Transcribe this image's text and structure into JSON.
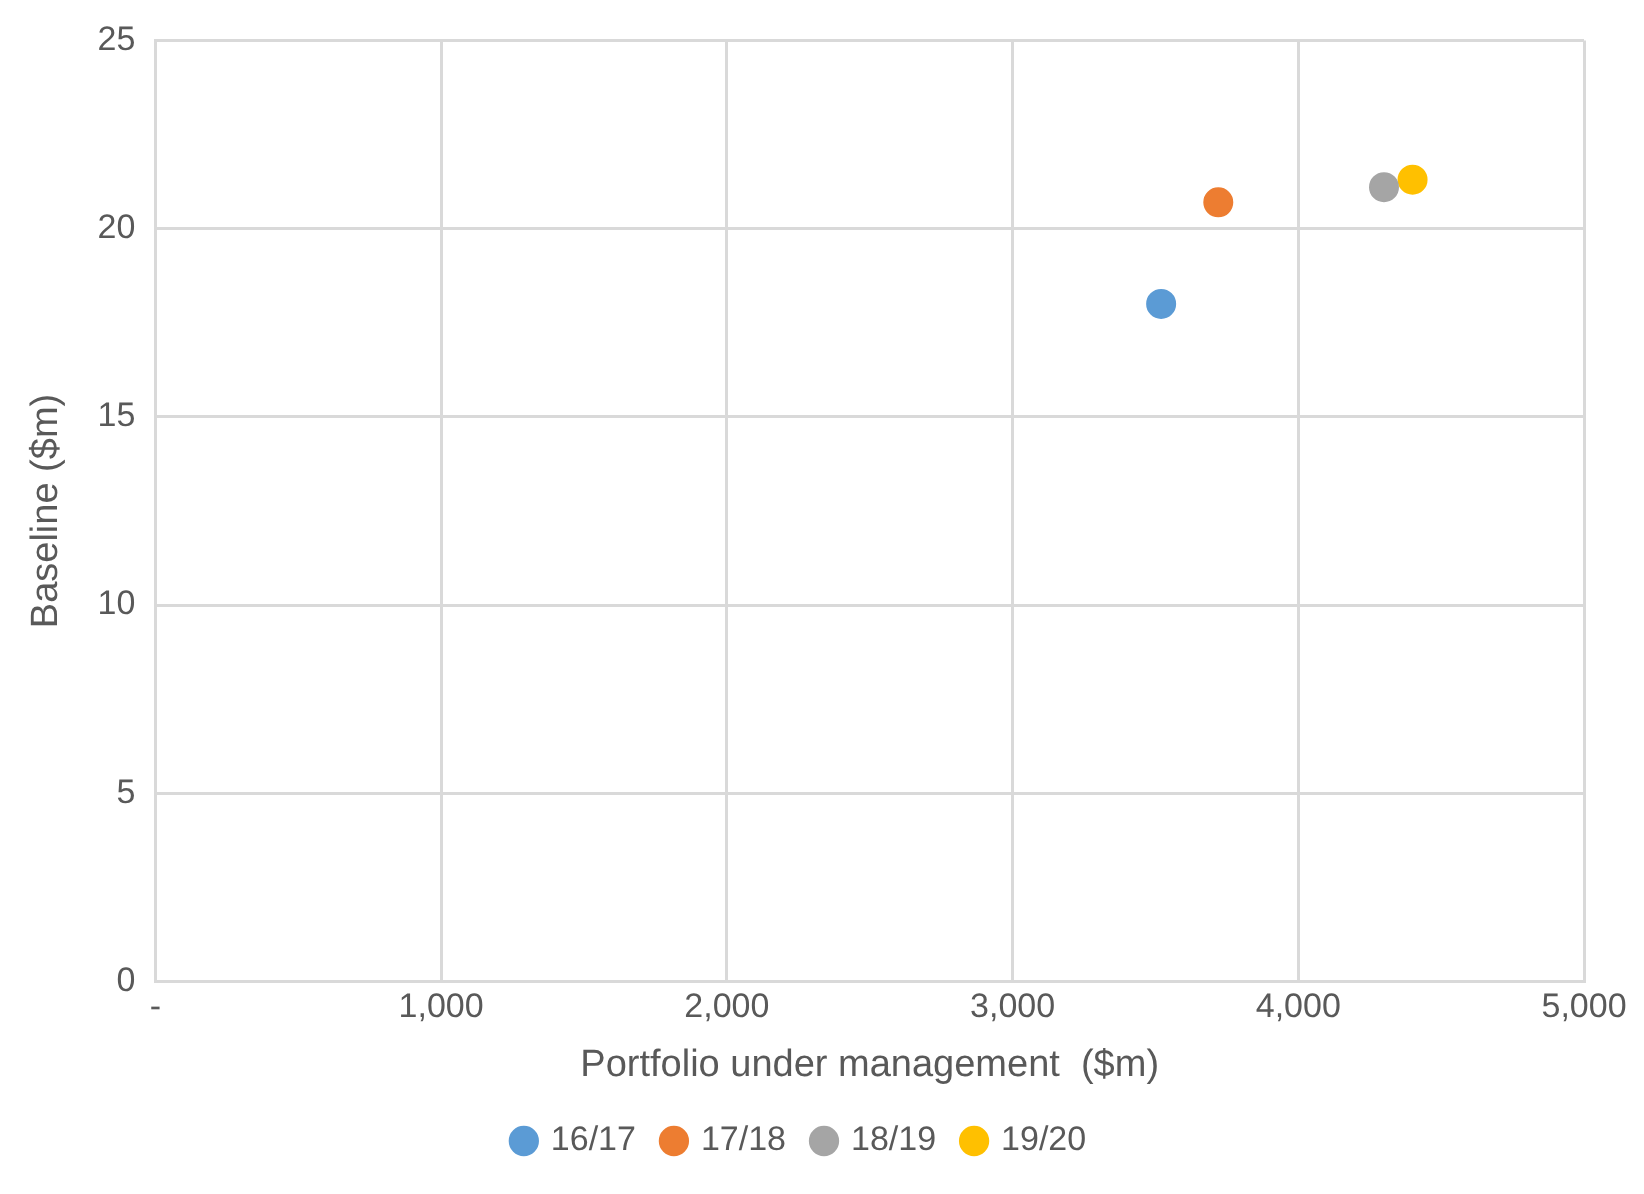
{
  "chart_data": {
    "type": "scatter",
    "xlabel": "Portfolio under management  ($m)",
    "ylabel": "Baseline ($m)",
    "xlim": [
      0,
      5000
    ],
    "xticks": [
      {
        "value": 0,
        "label": "-"
      },
      {
        "value": 1000,
        "label": "1,000"
      },
      {
        "value": 2000,
        "label": "2,000"
      },
      {
        "value": 3000,
        "label": "3,000"
      },
      {
        "value": 4000,
        "label": "4,000"
      },
      {
        "value": 5000,
        "label": "5,000"
      }
    ],
    "ylim": [
      0,
      25
    ],
    "yticks": [
      0,
      5,
      10,
      15,
      20,
      25
    ],
    "grid": true,
    "legend": "bottom",
    "marker": "circle",
    "series": [
      {
        "name": "16/17",
        "color": "#5b9bd5",
        "x": [
          3520
        ],
        "values": [
          18.0
        ]
      },
      {
        "name": "17/18",
        "color": "#ed7d31",
        "x": [
          3720
        ],
        "values": [
          20.7
        ]
      },
      {
        "name": "18/19",
        "color": "#a5a5a5",
        "x": [
          4300
        ],
        "values": [
          21.1
        ]
      },
      {
        "name": "19/20",
        "color": "#ffc000",
        "x": [
          4400
        ],
        "values": [
          21.3
        ]
      }
    ]
  }
}
